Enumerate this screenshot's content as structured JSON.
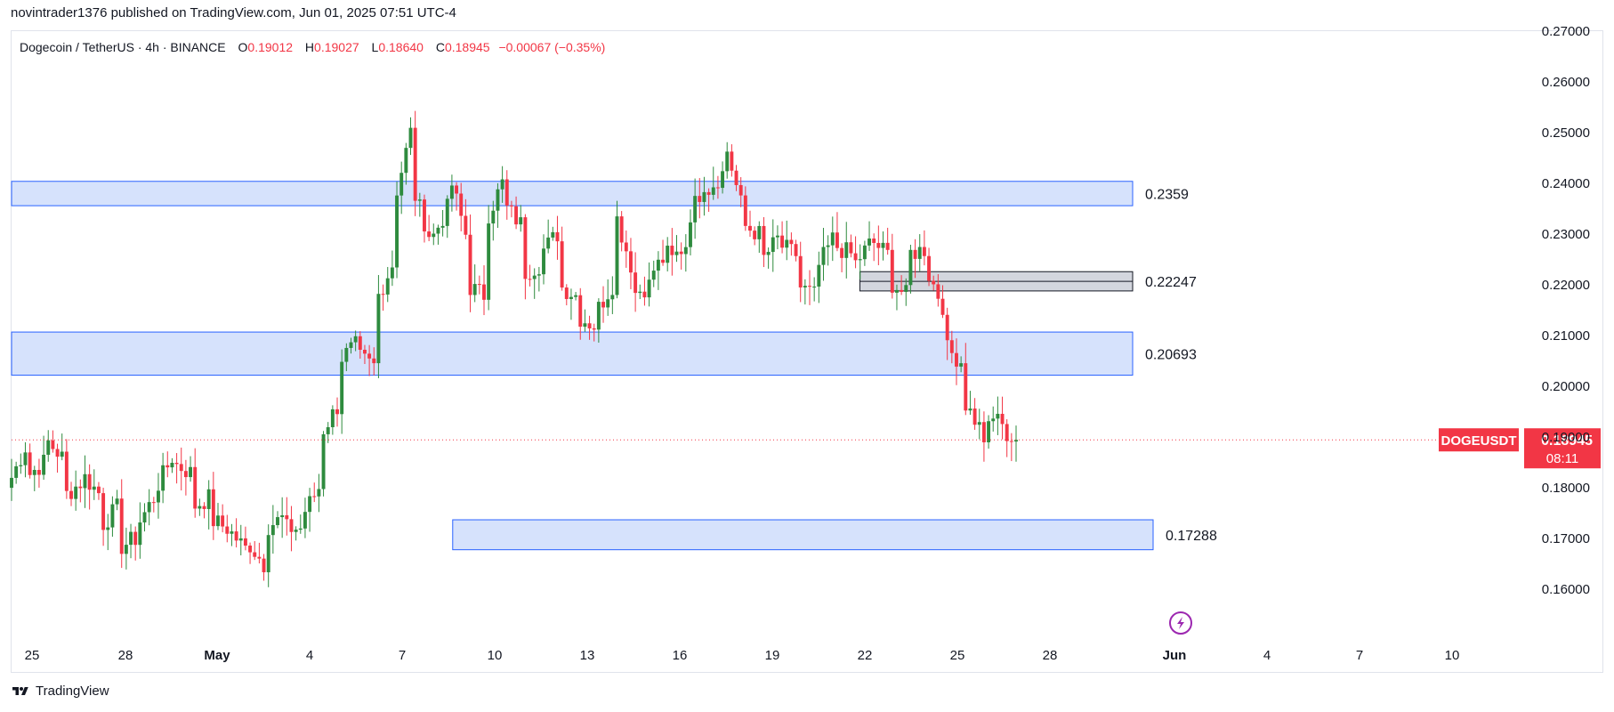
{
  "published_line": "novintrader1376 published on TradingView.com, Jun 01, 2025 07:51 UTC-4",
  "footer": {
    "brand": "TradingView",
    "logo_icon": "tradingview-logo-icon"
  },
  "legend": {
    "symbol": "Dogecoin / TetherUS · 4h · BINANCE",
    "open_label": "O",
    "open": "0.19012",
    "high_label": "H",
    "high": "0.19027",
    "low_label": "L",
    "low": "0.18640",
    "close_label": "C",
    "close": "0.18945",
    "change": "−0.00067 (−0.35%)"
  },
  "price_tag": {
    "symbol": "DOGEUSDT",
    "price": "0.18945",
    "countdown": "08:11"
  },
  "colors": {
    "up": "#2e8b3e",
    "down": "#f23645",
    "zone_fill": "#d4e0fc",
    "zone_stroke": "#2962ff",
    "gray_zone": "#d1d4dc",
    "price_line": "#f23645",
    "flash_icon": "#9c27b0"
  },
  "icons": {
    "flash": "lightning-circle-icon"
  },
  "chart_data": {
    "type": "candlestick",
    "title": "Dogecoin / TetherUS · 4h · BINANCE",
    "interval": "4h",
    "x_ticks": [
      "25",
      "28",
      "May",
      "4",
      "7",
      "10",
      "13",
      "16",
      "19",
      "22",
      "25",
      "28",
      "Jun",
      "4",
      "7",
      "10"
    ],
    "y_ticks": [
      "0.16000",
      "0.17000",
      "0.18000",
      "0.19000",
      "0.20000",
      "0.21000",
      "0.22000",
      "0.23000",
      "0.24000",
      "0.25000",
      "0.26000",
      "0.27000"
    ],
    "y_range": [
      0.1495,
      0.27
    ],
    "grid": false,
    "last_price": 0.18945,
    "zones": [
      {
        "label": "0.2359",
        "low": 0.2356,
        "high": 0.2404,
        "start": "Apr 24",
        "end": "May 31",
        "style": "blue"
      },
      {
        "label": "0.22247",
        "low": 0.2188,
        "high": 0.2226,
        "start": "May 20",
        "end": "May 31",
        "style": "gray"
      },
      {
        "label": "0.20693",
        "low": 0.2022,
        "high": 0.2107,
        "start": "Apr 24",
        "end": "May 31",
        "style": "blue"
      },
      {
        "label": "0.17288",
        "low": 0.1678,
        "high": 0.1737,
        "start": "May 7",
        "end": "May 31",
        "style": "blue"
      }
    ],
    "series": [
      {
        "name": "DOGEUSDT",
        "waypoints": [
          [
            0.18,
            0.188
          ],
          [
            0.182,
            0.185
          ],
          [
            0.19,
            0.186
          ],
          [
            0.178,
            0.181
          ],
          [
            0.183,
            0.179
          ],
          [
            0.172,
            0.176
          ],
          [
            0.168,
            0.17
          ],
          [
            0.172,
            0.178
          ],
          [
            0.179,
            0.186
          ],
          [
            0.185,
            0.183
          ],
          [
            0.176,
            0.178
          ],
          [
            0.174,
            0.172
          ],
          [
            0.172,
            0.168
          ],
          [
            0.17,
            0.165
          ],
          [
            0.172,
            0.174
          ],
          [
            0.172,
            0.172
          ],
          [
            0.174,
            0.18
          ],
          [
            0.19,
            0.196
          ],
          [
            0.205,
            0.208
          ],
          [
            0.206,
            0.204
          ],
          [
            0.216,
            0.224
          ],
          [
            0.235,
            0.25
          ],
          [
            0.24,
            0.23
          ],
          [
            0.228,
            0.235
          ],
          [
            0.243,
            0.23
          ],
          [
            0.22,
            0.218
          ],
          [
            0.232,
            0.24
          ],
          [
            0.236,
            0.232
          ],
          [
            0.222,
            0.224
          ],
          [
            0.226,
            0.23
          ],
          [
            0.22,
            0.218
          ],
          [
            0.214,
            0.212
          ],
          [
            0.214,
            0.22
          ],
          [
            0.236,
            0.224
          ],
          [
            0.218,
            0.22
          ],
          [
            0.222,
            0.226
          ],
          [
            0.224,
            0.228
          ],
          [
            0.232,
            0.24
          ],
          [
            0.238,
            0.242
          ],
          [
            0.25,
            0.236
          ],
          [
            0.232,
            0.23
          ],
          [
            0.224,
            0.229
          ],
          [
            0.228,
            0.226
          ],
          [
            0.22,
            0.218
          ],
          [
            0.222,
            0.229
          ],
          [
            0.228,
            0.226
          ],
          [
            0.223,
            0.228
          ],
          [
            0.229,
            0.226
          ],
          [
            0.221,
            0.218
          ],
          [
            0.226,
            0.227
          ],
          [
            0.224,
            0.216
          ],
          [
            0.208,
            0.205
          ],
          [
            0.198,
            0.192
          ],
          [
            0.188,
            0.195
          ],
          [
            0.192,
            0.189
          ]
        ]
      }
    ]
  }
}
